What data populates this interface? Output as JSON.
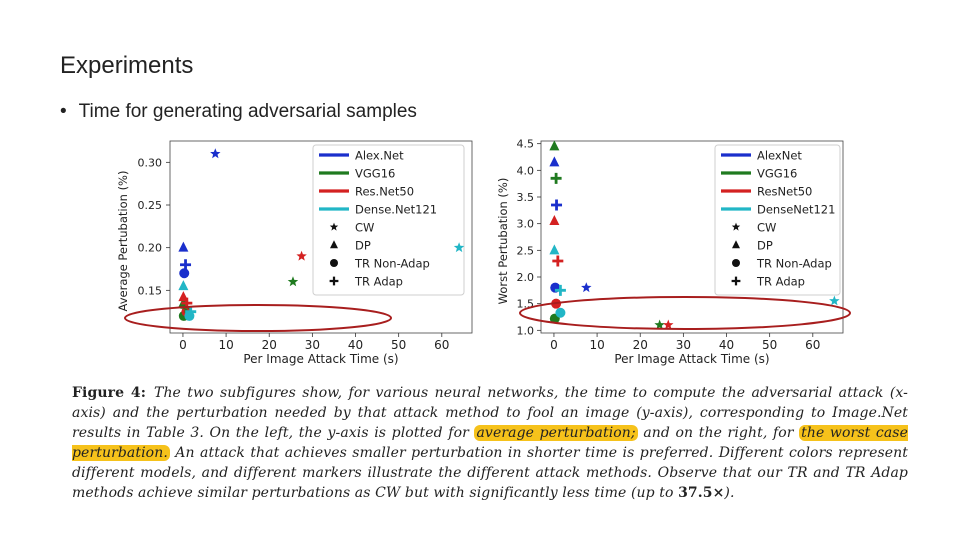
{
  "slide": {
    "title": "Experiments",
    "bullet_marker": "•",
    "bullet_text": "Time for generating adversarial samples"
  },
  "colors": {
    "AlexNet": "#1a2fcc",
    "VGG16": "#1f7a1f",
    "ResNet50": "#d42121",
    "DenseNet121": "#22b6c6",
    "ellipse": "#a81e1e",
    "highlight": "#f6c21b"
  },
  "chart_data": [
    {
      "type": "scatter",
      "title": "",
      "xlabel": "Per Image Attack Time (s)",
      "ylabel": "Average Pertubation (%)",
      "xlim": [
        -3,
        67
      ],
      "ylim": [
        0.1,
        0.325
      ],
      "xticks": [
        0,
        10,
        20,
        30,
        40,
        50,
        60
      ],
      "yticks": [
        0.15,
        0.2,
        0.25,
        0.3
      ],
      "ytick_labels": [
        "0.15",
        "0.20",
        "0.25",
        "0.30"
      ],
      "legend_position": "top-right",
      "legend": {
        "models": [
          "AlexNet",
          "VGG16",
          "ResNet50",
          "DenseNet121"
        ],
        "model_labels": [
          "Alex.Net",
          "VGG16",
          "Res.Net50",
          "Dense.Net121"
        ],
        "methods": [
          "CW",
          "DP",
          "TR Non-Adap",
          "TR Adap"
        ],
        "method_labels": [
          "CW",
          "DP",
          "TR Non-Adap",
          "TR Adap"
        ]
      },
      "points": [
        {
          "model": "AlexNet",
          "method": "CW",
          "x": 7.5,
          "y": 0.31
        },
        {
          "model": "VGG16",
          "method": "CW",
          "x": 25.5,
          "y": 0.16
        },
        {
          "model": "ResNet50",
          "method": "CW",
          "x": 27.5,
          "y": 0.19
        },
        {
          "model": "DenseNet121",
          "method": "CW",
          "x": 64,
          "y": 0.2
        },
        {
          "model": "AlexNet",
          "method": "DP",
          "x": 0.1,
          "y": 0.2
        },
        {
          "model": "VGG16",
          "method": "DP",
          "x": 0.1,
          "y": 0.135
        },
        {
          "model": "ResNet50",
          "method": "DP",
          "x": 0.1,
          "y": 0.142
        },
        {
          "model": "DenseNet121",
          "method": "DP",
          "x": 0.1,
          "y": 0.155
        },
        {
          "model": "AlexNet",
          "method": "TR Non-Adap",
          "x": 0.3,
          "y": 0.17
        },
        {
          "model": "VGG16",
          "method": "TR Non-Adap",
          "x": 0.2,
          "y": 0.12
        },
        {
          "model": "ResNet50",
          "method": "TR Non-Adap",
          "x": 0.8,
          "y": 0.125
        },
        {
          "model": "DenseNet121",
          "method": "TR Non-Adap",
          "x": 1.5,
          "y": 0.12
        },
        {
          "model": "AlexNet",
          "method": "TR Adap",
          "x": 0.6,
          "y": 0.18
        },
        {
          "model": "VGG16",
          "method": "TR Adap",
          "x": 0.7,
          "y": 0.13
        },
        {
          "model": "ResNet50",
          "method": "TR Adap",
          "x": 0.9,
          "y": 0.135
        },
        {
          "model": "DenseNet121",
          "method": "TR Adap",
          "x": 1.8,
          "y": 0.125
        }
      ]
    },
    {
      "type": "scatter",
      "title": "",
      "xlabel": "Per Image Attack Time (s)",
      "ylabel": "Worst Pertubation (%)",
      "xlim": [
        -3,
        67
      ],
      "ylim": [
        0.95,
        4.55
      ],
      "xticks": [
        0,
        10,
        20,
        30,
        40,
        50,
        60
      ],
      "yticks": [
        1.0,
        1.5,
        2.0,
        2.5,
        3.0,
        3.5,
        4.0,
        4.5
      ],
      "ytick_labels": [
        "1.0",
        "1.5",
        "2.0",
        "2.5",
        "3.0",
        "3.5",
        "4.0",
        "4.5"
      ],
      "legend_position": "top-right",
      "legend": {
        "models": [
          "AlexNet",
          "VGG16",
          "ResNet50",
          "DenseNet121"
        ],
        "model_labels": [
          "AlexNet",
          "VGG16",
          "ResNet50",
          "DenseNet121"
        ],
        "methods": [
          "CW",
          "DP",
          "TR Non-Adap",
          "TR Adap"
        ],
        "method_labels": [
          "CW",
          "DP",
          "TR Non-Adap",
          "TR Adap"
        ]
      },
      "points": [
        {
          "model": "AlexNet",
          "method": "CW",
          "x": 7.5,
          "y": 1.8
        },
        {
          "model": "VGG16",
          "method": "CW",
          "x": 24.5,
          "y": 1.1
        },
        {
          "model": "ResNet50",
          "method": "CW",
          "x": 26.5,
          "y": 1.1
        },
        {
          "model": "DenseNet121",
          "method": "CW",
          "x": 65,
          "y": 1.55
        },
        {
          "model": "AlexNet",
          "method": "DP",
          "x": 0.1,
          "y": 4.15
        },
        {
          "model": "VGG16",
          "method": "DP",
          "x": 0.1,
          "y": 4.45
        },
        {
          "model": "ResNet50",
          "method": "DP",
          "x": 0.1,
          "y": 3.05
        },
        {
          "model": "DenseNet121",
          "method": "DP",
          "x": 0.1,
          "y": 2.5
        },
        {
          "model": "AlexNet",
          "method": "TR Non-Adap",
          "x": 0.3,
          "y": 1.8
        },
        {
          "model": "VGG16",
          "method": "TR Non-Adap",
          "x": 0.2,
          "y": 1.22
        },
        {
          "model": "ResNet50",
          "method": "TR Non-Adap",
          "x": 0.5,
          "y": 1.5
        },
        {
          "model": "DenseNet121",
          "method": "TR Non-Adap",
          "x": 1.5,
          "y": 1.33
        },
        {
          "model": "AlexNet",
          "method": "TR Adap",
          "x": 0.6,
          "y": 3.35
        },
        {
          "model": "VGG16",
          "method": "TR Adap",
          "x": 0.5,
          "y": 3.85
        },
        {
          "model": "ResNet50",
          "method": "TR Adap",
          "x": 0.9,
          "y": 2.3
        },
        {
          "model": "DenseNet121",
          "method": "TR Adap",
          "x": 1.5,
          "y": 1.75
        }
      ]
    }
  ],
  "caption": {
    "label": "Figure 4:",
    "part1": "The two subfigures show, for various neural networks, the time to compute the adversarial attack (x-axis) and the perturbation needed by that attack method to fool an image (y-axis), corresponding to Image.Net results in Table 3. On the left, the y-axis is plotted for ",
    "hl1": "average perturbation;",
    "part2": " and on the right, for ",
    "hl2": "the worst case perturbation.",
    "part3": " An attack that achieves smaller perturbation in shorter time is preferred. Different colors represent different models, and different markers illustrate the different attack methods. Observe that our TR and TR Adap methods achieve similar perturbations as CW but with significantly less time (up to ",
    "bold": "37.5×",
    "part4": ")."
  }
}
